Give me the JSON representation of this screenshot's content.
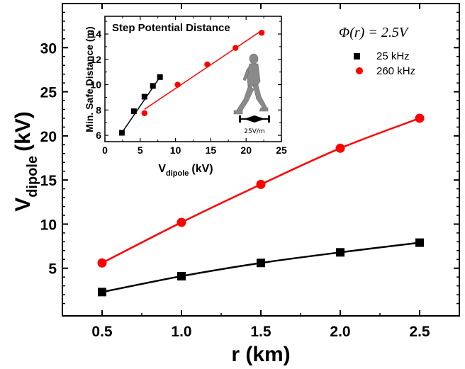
{
  "chart_data": [
    {
      "type": "line",
      "name": "main",
      "title": "",
      "xlabel": "r (km)",
      "ylabel_main": "V",
      "ylabel_sub": "dipole",
      "ylabel_unit": "(kV)",
      "xlim": [
        0.25,
        2.75
      ],
      "ylim": [
        -0.4,
        35
      ],
      "xticks": [
        0.5,
        1.0,
        1.5,
        2.0,
        2.5
      ],
      "xtick_labels": [
        "0.5",
        "1.0",
        "1.5",
        "2.0",
        "2.5"
      ],
      "yticks": [
        5,
        10,
        15,
        20,
        25,
        30
      ],
      "ytick_labels": [
        "5",
        "10",
        "15",
        "20",
        "25",
        "30"
      ],
      "annotation": "Φ(r) = 2.5V",
      "legend_position": "top-right",
      "x": [
        0.5,
        1.0,
        1.5,
        2.0,
        2.5
      ],
      "series": [
        {
          "name": "25 kHz",
          "marker": "square",
          "color": "#000000",
          "values": [
            2.3,
            4.1,
            5.6,
            6.8,
            7.9
          ]
        },
        {
          "name": "260 kHz",
          "marker": "circle",
          "color": "#ff0000",
          "values": [
            5.6,
            10.2,
            14.5,
            18.6,
            22.0
          ]
        }
      ],
      "grid": false
    },
    {
      "type": "scatter",
      "name": "inset",
      "title": "Step Potential Distance",
      "xlabel_main": "V",
      "xlabel_sub": "dipole",
      "xlabel_unit": "(kV)",
      "ylabel": "Min. Safe Distance (m)",
      "xlim": [
        0,
        25
      ],
      "ylim": [
        5.5,
        15.4
      ],
      "xticks": [
        0,
        5,
        10,
        15,
        20,
        25
      ],
      "xtick_labels": [
        "0",
        "5",
        "10",
        "15",
        "20",
        "25"
      ],
      "yticks": [
        6,
        8,
        10,
        12,
        14
      ],
      "ytick_labels": [
        "6",
        "8",
        "10",
        "12",
        "14"
      ],
      "annotation": "25V/m",
      "series": [
        {
          "name": "25 kHz",
          "marker": "square",
          "color": "#000000",
          "x": [
            2.4,
            4.1,
            5.6,
            6.8,
            7.8
          ],
          "y": [
            6.2,
            7.9,
            9.05,
            9.9,
            10.6
          ],
          "fit": {
            "x": [
              2.4,
              7.8
            ],
            "y": [
              6.2,
              10.6
            ]
          }
        },
        {
          "name": "260 kHz",
          "marker": "circle",
          "color": "#ff0000",
          "x": [
            5.6,
            10.3,
            14.5,
            18.5,
            22.2
          ],
          "y": [
            7.75,
            10.0,
            11.6,
            12.9,
            14.1
          ],
          "fit": {
            "x": [
              5.6,
              22.0
            ],
            "y": [
              8.05,
              14.2
            ]
          }
        }
      ],
      "grid": false
    }
  ]
}
